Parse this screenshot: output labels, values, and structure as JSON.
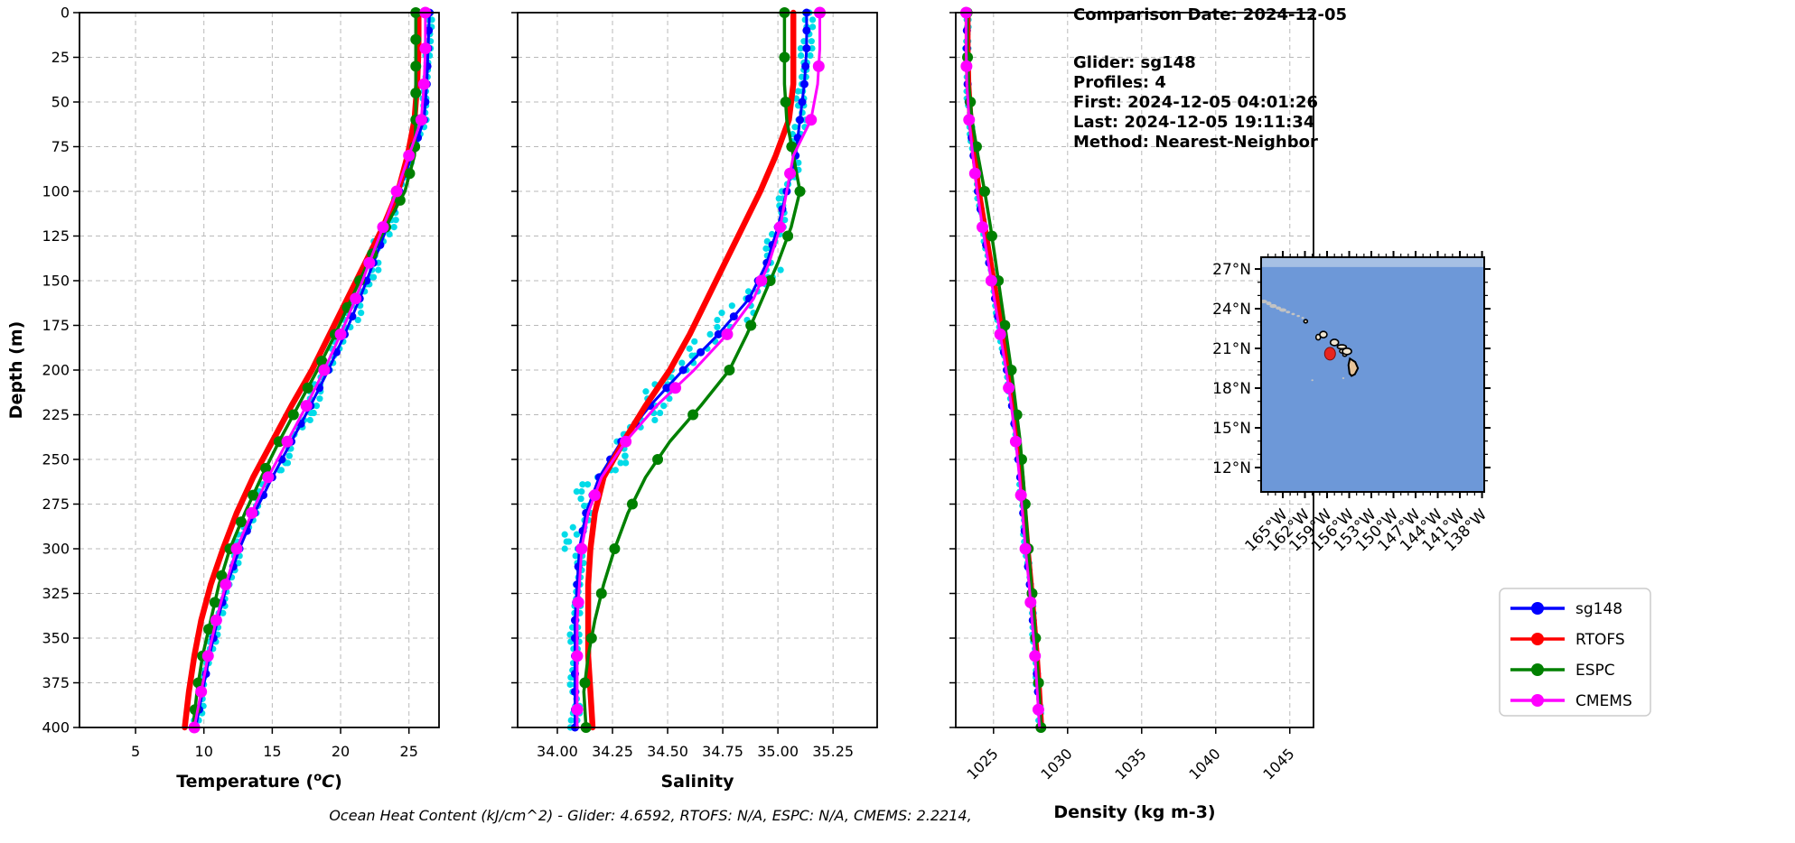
{
  "info_panel": {
    "comparison_date": "Comparison Date: 2024-12-05",
    "glider": "Glider: sg148",
    "profiles": "Profiles: 4",
    "first": "First: 2024-12-05 04:01:26",
    "last": "Last: 2024-12-05 19:11:34",
    "method": "Method: Nearest-Neighbor"
  },
  "footer_note": "Ocean Heat Content (kJ/cm^2) - Glider: 4.6592,  RTOFS: N/A,  ESPC: N/A,  CMEMS: 2.2214,",
  "legend": {
    "entries": [
      {
        "label": "sg148",
        "color": "#0000ff"
      },
      {
        "label": "RTOFS",
        "color": "#ff0000"
      },
      {
        "label": "ESPC",
        "color": "#008000"
      },
      {
        "label": "CMEMS",
        "color": "#ff00ff"
      }
    ]
  },
  "map": {
    "extent": {
      "lon": [
        -167.94,
        -137.7
      ],
      "lat": [
        10.16,
        27.89
      ]
    },
    "colors": {
      "ocean": "#6d98d8",
      "top_band": "#a6c0e4",
      "island_fill": "#f0e6d2",
      "big_island_fill": "#e7c49a",
      "island_outline": "#000000",
      "shoal_patch": "#c3c3c3",
      "marker_fill": "#e8251f",
      "marker_edge": "#7c0f0f"
    },
    "lat_ticks": [
      {
        "label": "27°N",
        "value": 27
      },
      {
        "label": "24°N",
        "value": 24
      },
      {
        "label": "21°N",
        "value": 21
      },
      {
        "label": "18°N",
        "value": 18
      },
      {
        "label": "15°N",
        "value": 15
      },
      {
        "label": "12°N",
        "value": 12
      }
    ],
    "lon_ticks": [
      {
        "label": "165°W",
        "value": -165
      },
      {
        "label": "162°W",
        "value": -162
      },
      {
        "label": "159°W",
        "value": -159
      },
      {
        "label": "156°W",
        "value": -156
      },
      {
        "label": "153°W",
        "value": -153
      },
      {
        "label": "150°W",
        "value": -150
      },
      {
        "label": "147°W",
        "value": -147
      },
      {
        "label": "144°W",
        "value": -144
      },
      {
        "label": "141°W",
        "value": -141
      },
      {
        "label": "138°W",
        "value": -138
      }
    ],
    "shoal_patches": [
      {
        "lon": -167.6,
        "lat": 24.55,
        "rx": 4,
        "ry": 2
      },
      {
        "lon": -166.9,
        "lat": 24.4,
        "rx": 3,
        "ry": 2
      },
      {
        "lon": -166.3,
        "lat": 24.2,
        "rx": 4,
        "ry": 2.2
      },
      {
        "lon": -165.6,
        "lat": 24.05,
        "rx": 3,
        "ry": 1.8
      },
      {
        "lon": -165.0,
        "lat": 23.9,
        "rx": 4,
        "ry": 2
      },
      {
        "lon": -164.3,
        "lat": 23.75,
        "rx": 2.5,
        "ry": 1.5
      },
      {
        "lon": -163.6,
        "lat": 23.6,
        "rx": 2,
        "ry": 1.3
      },
      {
        "lon": -162.9,
        "lat": 23.45,
        "rx": 1.8,
        "ry": 1.2
      },
      {
        "lon": -162.3,
        "lat": 23.3,
        "rx": 1.5,
        "ry": 1.2
      },
      {
        "lon": -161.0,
        "lat": 18.6,
        "rx": 1.2,
        "ry": 1
      },
      {
        "lon": -156.8,
        "lat": 18.75,
        "rx": 1.2,
        "ry": 1
      }
    ],
    "islands": [
      {
        "name": "Nihoa",
        "lon": -161.9,
        "lat": 23.05,
        "rx": 2,
        "ry": 1.8
      },
      {
        "name": "Niihau",
        "lon": -160.2,
        "lat": 21.85,
        "rx": 2.5,
        "ry": 3
      },
      {
        "name": "Kauai",
        "lon": -159.5,
        "lat": 22.05,
        "rx": 4,
        "ry": 3.5
      },
      {
        "name": "Oahu",
        "lon": -158.0,
        "lat": 21.45,
        "rx": 4.5,
        "ry": 3.5
      },
      {
        "name": "Molokai",
        "lon": -157.0,
        "lat": 21.12,
        "rx": 5,
        "ry": 2.2
      },
      {
        "name": "Lanai",
        "lon": -156.95,
        "lat": 20.8,
        "rx": 2.8,
        "ry": 2.2
      },
      {
        "name": "Kahoolawe",
        "lon": -156.6,
        "lat": 20.53,
        "rx": 2.2,
        "ry": 1.8
      },
      {
        "name": "Maui",
        "lon": -156.3,
        "lat": 20.78,
        "rx": 5,
        "ry": 3.5
      }
    ],
    "big_island_polygon": [
      [
        -155.9,
        20.23
      ],
      [
        -155.18,
        19.97
      ],
      [
        -154.82,
        19.5
      ],
      [
        -155.23,
        19.05
      ],
      [
        -155.68,
        18.92
      ],
      [
        -155.95,
        19.1
      ],
      [
        -156.1,
        19.75
      ]
    ],
    "glider_marker": {
      "lon": -158.6,
      "lat": 20.6
    }
  },
  "chart_data": [
    {
      "id": "temperature",
      "type": "line",
      "xlabel": "Temperature (°C)",
      "xlabel_parts": [
        {
          "t": "Temperature ("
        },
        {
          "t": "o",
          "sup": true
        },
        {
          "t": "C",
          "italic": true
        },
        {
          "t": ")"
        }
      ],
      "xlim": [
        0.9,
        27.2
      ],
      "xticks": [
        5,
        10,
        15,
        20,
        25
      ],
      "xtick_labels": [
        "5",
        "10",
        "15",
        "20",
        "25"
      ],
      "xtick_rotation": 0,
      "ylabel": "Depth (m)",
      "ylim": [
        0,
        400
      ],
      "yticks": [
        0,
        25,
        50,
        75,
        100,
        125,
        150,
        175,
        200,
        225,
        250,
        275,
        300,
        325,
        350,
        375,
        400
      ],
      "show_ytick_labels": true,
      "grid": true,
      "depths": [
        0,
        20,
        40,
        60,
        80,
        100,
        120,
        140,
        160,
        180,
        200,
        220,
        240,
        260,
        280,
        300,
        320,
        340,
        360,
        380,
        400
      ],
      "series": [
        {
          "name": "sg148",
          "color": "#0000ff",
          "line_width": 3,
          "marker_radius": 4.5,
          "marker_every_m": 10,
          "values": [
            26.5,
            26.4,
            26.3,
            26.1,
            25.2,
            24.3,
            23.4,
            22.4,
            21.4,
            20.3,
            19.1,
            17.8,
            16.4,
            15.0,
            13.7,
            12.6,
            11.7,
            11.0,
            10.4,
            9.9,
            9.4
          ]
        },
        {
          "name": "RTOFS",
          "color": "#ff0000",
          "line_width": 6.5,
          "marker_radius": 0,
          "marker_every_m": 0,
          "values": [
            25.7,
            25.7,
            25.6,
            25.4,
            24.9,
            24.2,
            23.1,
            21.8,
            20.5,
            19.2,
            17.9,
            16.4,
            15.0,
            13.6,
            12.4,
            11.4,
            10.5,
            9.8,
            9.3,
            8.9,
            8.6
          ]
        },
        {
          "name": "ESPC",
          "color": "#008000",
          "line_width": 3.5,
          "marker_radius": 6,
          "marker_every_m": 15,
          "values": [
            25.5,
            25.5,
            25.5,
            25.5,
            25.4,
            24.7,
            23.3,
            22.0,
            20.8,
            19.6,
            18.3,
            16.9,
            15.5,
            14.2,
            13.0,
            11.9,
            11.1,
            10.5,
            9.9,
            9.5,
            9.2
          ]
        },
        {
          "name": "CMEMS",
          "color": "#ff00ff",
          "line_width": 3,
          "marker_radius": 6.5,
          "marker_every_m": 20,
          "values": [
            26.2,
            26.2,
            26.1,
            25.9,
            25.0,
            24.1,
            23.1,
            22.1,
            21.1,
            20.0,
            18.8,
            17.5,
            16.1,
            14.7,
            13.5,
            12.4,
            11.6,
            10.9,
            10.3,
            9.8,
            9.3
          ]
        }
      ],
      "raw_scatter": {
        "name": "sg148-raw-points",
        "color": "#00dbe8",
        "dot_radius": 3.6,
        "spread_by_depth": [
          [
            0,
            110,
            0.18
          ],
          [
            110,
            300,
            0.5
          ],
          [
            300,
            400,
            0.25
          ]
        ]
      }
    },
    {
      "id": "salinity",
      "type": "line",
      "xlabel": "Salinity",
      "xlabel_parts": [
        {
          "t": "Salinity"
        }
      ],
      "xlim": [
        33.82,
        35.45
      ],
      "xticks": [
        34.0,
        34.25,
        34.5,
        34.75,
        35.0,
        35.25
      ],
      "xtick_labels": [
        "34.00",
        "34.25",
        "34.50",
        "34.75",
        "35.00",
        "35.25"
      ],
      "xtick_rotation": 0,
      "ylabel": "Depth (m)",
      "ylim": [
        0,
        400
      ],
      "yticks": [
        0,
        25,
        50,
        75,
        100,
        125,
        150,
        175,
        200,
        225,
        250,
        275,
        300,
        325,
        350,
        375,
        400
      ],
      "show_ytick_labels": false,
      "grid": true,
      "depths": [
        0,
        20,
        40,
        60,
        80,
        100,
        120,
        140,
        160,
        180,
        200,
        220,
        240,
        260,
        280,
        300,
        320,
        340,
        360,
        380,
        400
      ],
      "series": [
        {
          "name": "sg148",
          "color": "#0000ff",
          "line_width": 3,
          "marker_radius": 4.5,
          "marker_every_m": 10,
          "values": [
            35.13,
            35.13,
            35.12,
            35.1,
            35.08,
            35.04,
            35.0,
            34.95,
            34.87,
            34.73,
            34.57,
            34.42,
            34.29,
            34.19,
            34.13,
            34.1,
            34.09,
            34.08,
            34.08,
            34.08,
            34.08
          ]
        },
        {
          "name": "RTOFS",
          "color": "#ff0000",
          "line_width": 6.5,
          "marker_radius": 0,
          "marker_every_m": 0,
          "values": [
            35.07,
            35.07,
            35.07,
            35.05,
            34.99,
            34.92,
            34.84,
            34.76,
            34.68,
            34.6,
            34.51,
            34.4,
            34.3,
            34.21,
            34.17,
            34.15,
            34.14,
            34.14,
            34.14,
            34.15,
            34.16
          ]
        },
        {
          "name": "ESPC",
          "color": "#008000",
          "line_width": 3.5,
          "marker_radius": 6,
          "marker_every_m": 25,
          "values": [
            35.03,
            35.03,
            35.03,
            35.04,
            35.07,
            35.1,
            35.06,
            35.0,
            34.93,
            34.86,
            34.78,
            34.65,
            34.51,
            34.4,
            34.32,
            34.26,
            34.21,
            34.17,
            34.14,
            34.12,
            34.13
          ]
        },
        {
          "name": "CMEMS",
          "color": "#ff00ff",
          "line_width": 3,
          "marker_radius": 6.5,
          "marker_every_m": 30,
          "values": [
            35.19,
            35.19,
            35.18,
            35.15,
            35.07,
            35.04,
            35.01,
            34.96,
            34.89,
            34.77,
            34.62,
            34.45,
            34.31,
            34.2,
            34.14,
            34.11,
            34.1,
            34.09,
            34.09,
            34.09,
            34.09
          ]
        }
      ],
      "raw_scatter": {
        "name": "sg148-raw-points",
        "color": "#00dbe8",
        "dot_radius": 3.6,
        "spread_by_depth": [
          [
            0,
            140,
            0.025
          ],
          [
            140,
            300,
            0.07
          ],
          [
            300,
            400,
            0.02
          ]
        ]
      }
    },
    {
      "id": "density",
      "type": "line",
      "xlabel": "Density (kg m-3)",
      "xlabel_parts": [
        {
          "t": "Density (kg m-3)"
        }
      ],
      "xlim": [
        1022.45,
        1046.6
      ],
      "xticks": [
        1025,
        1030,
        1035,
        1040,
        1045
      ],
      "xtick_labels": [
        "1025",
        "1030",
        "1035",
        "1040",
        "1045"
      ],
      "xtick_rotation": 45,
      "ylabel": "Depth (m)",
      "ylim": [
        0,
        400
      ],
      "yticks": [
        0,
        25,
        50,
        75,
        100,
        125,
        150,
        175,
        200,
        225,
        250,
        275,
        300,
        325,
        350,
        375,
        400
      ],
      "show_ytick_labels": false,
      "grid": true,
      "depths": [
        0,
        20,
        40,
        60,
        80,
        100,
        120,
        140,
        160,
        180,
        200,
        220,
        240,
        260,
        280,
        300,
        320,
        340,
        360,
        380,
        400
      ],
      "series": [
        {
          "name": "sg148",
          "color": "#0000ff",
          "line_width": 3,
          "marker_radius": 4.5,
          "marker_every_m": 10,
          "values": [
            1023.2,
            1023.2,
            1023.25,
            1023.4,
            1023.65,
            1023.95,
            1024.3,
            1024.7,
            1025.1,
            1025.5,
            1025.9,
            1026.25,
            1026.55,
            1026.8,
            1027.0,
            1027.2,
            1027.45,
            1027.65,
            1027.85,
            1028.0,
            1028.15
          ]
        },
        {
          "name": "RTOFS",
          "color": "#ff0000",
          "line_width": 6.5,
          "marker_radius": 0,
          "marker_every_m": 0,
          "values": [
            1023.25,
            1023.25,
            1023.3,
            1023.45,
            1023.7,
            1024.0,
            1024.4,
            1024.8,
            1025.2,
            1025.6,
            1026.0,
            1026.35,
            1026.65,
            1026.9,
            1027.1,
            1027.3,
            1027.52,
            1027.72,
            1027.92,
            1028.08,
            1028.22
          ]
        },
        {
          "name": "ESPC",
          "color": "#008000",
          "line_width": 3.5,
          "marker_radius": 6,
          "marker_every_m": 25,
          "values": [
            1023.22,
            1023.22,
            1023.32,
            1023.55,
            1023.95,
            1024.4,
            1024.8,
            1025.15,
            1025.5,
            1025.85,
            1026.2,
            1026.5,
            1026.8,
            1027.0,
            1027.18,
            1027.35,
            1027.55,
            1027.75,
            1027.92,
            1028.08,
            1028.2
          ]
        },
        {
          "name": "CMEMS",
          "color": "#ff00ff",
          "line_width": 3,
          "marker_radius": 6.5,
          "marker_every_m": 30,
          "values": [
            1023.15,
            1023.15,
            1023.2,
            1023.35,
            1023.6,
            1023.9,
            1024.25,
            1024.65,
            1025.05,
            1025.45,
            1025.85,
            1026.2,
            1026.5,
            1026.75,
            1026.95,
            1027.15,
            1027.4,
            1027.6,
            1027.8,
            1027.95,
            1028.1
          ]
        }
      ],
      "raw_scatter": {
        "name": "sg148-raw-points",
        "color": "#00dbe8",
        "dot_radius": 3.2,
        "spread_by_depth": [
          [
            0,
            400,
            0.12
          ]
        ]
      }
    }
  ]
}
